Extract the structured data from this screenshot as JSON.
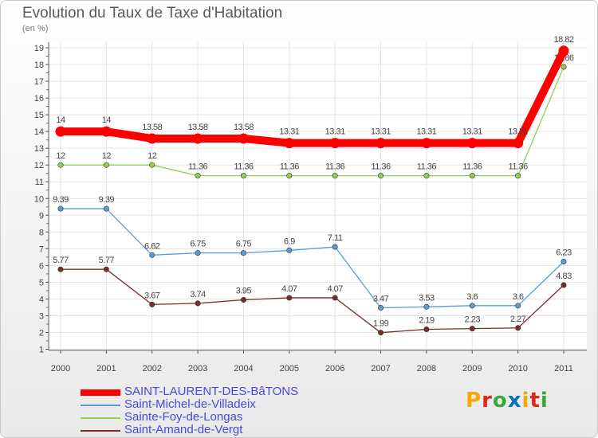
{
  "chart_data": {
    "type": "line",
    "title": "Evolution du Taux de Taxe d'Habitation",
    "subtitle": "(en %)",
    "categories": [
      "2000",
      "2001",
      "2002",
      "2003",
      "2004",
      "2005",
      "2006",
      "2007",
      "2008",
      "2009",
      "2010",
      "2011"
    ],
    "ylim": [
      1,
      19
    ],
    "yticks": [
      1,
      2,
      3,
      4,
      5,
      6,
      7,
      8,
      9,
      10,
      11,
      12,
      13,
      14,
      15,
      16,
      17,
      18,
      19
    ],
    "grid": true,
    "series": [
      {
        "name": "SAINT-LAURENT-DES-BâTONS",
        "color": "#ff0000",
        "values": [
          14,
          14,
          13.58,
          13.58,
          13.58,
          13.31,
          13.31,
          13.31,
          13.31,
          13.31,
          13.31,
          18.82
        ],
        "labels": [
          "14",
          "14",
          "13.58",
          "13.58",
          "13.58",
          "13.31",
          "13.31",
          "13.31",
          "13.31",
          "13.31",
          "13.31",
          "18.82"
        ]
      },
      {
        "name": "Saint-Michel-de-Villadeix",
        "color": "#5b9bd5",
        "values": [
          9.39,
          9.39,
          6.62,
          6.75,
          6.75,
          6.9,
          7.11,
          3.47,
          3.53,
          3.6,
          3.6,
          6.23
        ],
        "labels": [
          "9.39",
          "9.39",
          "6.62",
          "6.75",
          "6.75",
          "6.9",
          "7.11",
          "3.47",
          "3.53",
          "3.6",
          "3.6",
          "6.23"
        ]
      },
      {
        "name": "Sainte-Foy-de-Longas",
        "color": "#92d050",
        "values": [
          12,
          12,
          12,
          11.36,
          11.36,
          11.36,
          11.36,
          11.36,
          11.36,
          11.36,
          11.36,
          17.86
        ],
        "labels": [
          "12",
          "12",
          "12",
          "11.36",
          "11.36",
          "11.36",
          "11.36",
          "11.36",
          "11.36",
          "11.36",
          "11.36",
          "17.86"
        ]
      },
      {
        "name": "Saint-Amand-de-Vergt",
        "color": "#7b2c2c",
        "values": [
          5.77,
          5.77,
          3.67,
          3.74,
          3.95,
          4.07,
          4.07,
          1.99,
          2.19,
          2.23,
          2.27,
          4.83
        ],
        "labels": [
          "5.77",
          "5.77",
          "3.67",
          "3.74",
          "3.95",
          "4.07",
          "4.07",
          "1.99",
          "2.19",
          "2.23",
          "2.27",
          "4.83"
        ]
      }
    ],
    "legend_position": "bottom-left"
  },
  "logo": {
    "letters": [
      "P",
      "r",
      "o",
      "x",
      "i",
      "t",
      "i"
    ],
    "colors": [
      "#f6a800",
      "#e1251b",
      "#3aa935",
      "#0a70b8",
      "#f6a800",
      "#e1251b",
      "#3aa935"
    ]
  }
}
